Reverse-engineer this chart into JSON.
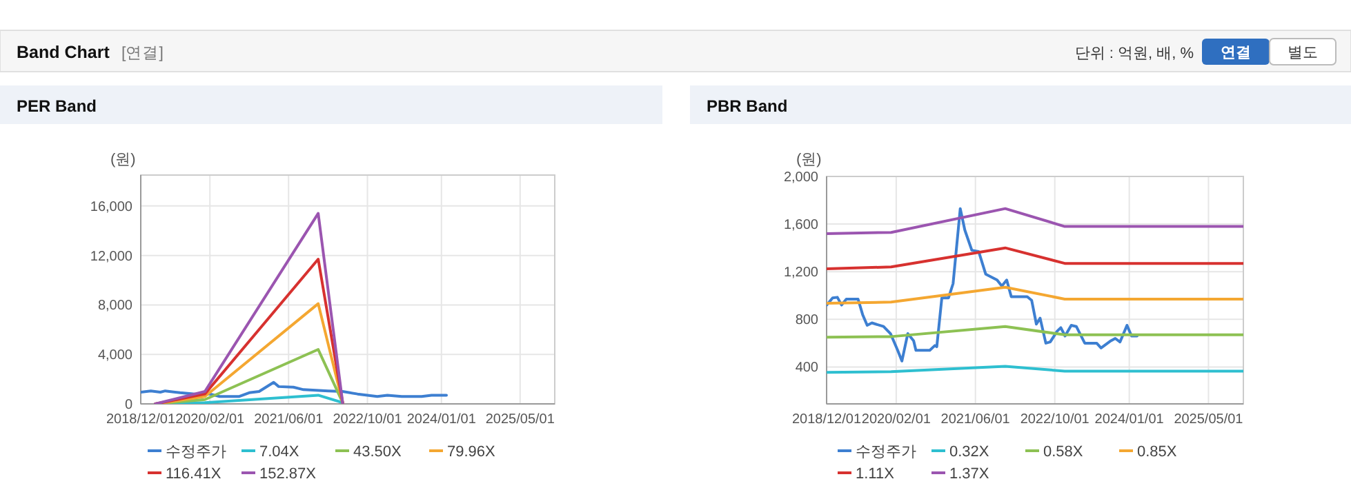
{
  "chart_data": [
    {
      "type": "line",
      "title": "PER Band",
      "ylabel": "(원)",
      "legend": "bottom",
      "grid": true,
      "marker": "none",
      "line_style": "solid",
      "annotations": [
        "Band Chart",
        "[연결]",
        "단위 : 억원, 배, %",
        "연결",
        "별도"
      ],
      "xlim": [
        "2018-12-01",
        "2025-12-01"
      ],
      "xticks": [
        {
          "value": "2018-12-01",
          "label": "2018/12/01"
        },
        {
          "value": "2020-02-01",
          "label": "2020/02/01"
        },
        {
          "value": "2021-06-01",
          "label": "2021/06/01"
        },
        {
          "value": "2022-10-01",
          "label": "2022/10/01"
        },
        {
          "value": "2024-01-01",
          "label": "2024/01/01"
        },
        {
          "value": "2025-05-01",
          "label": "2025/05/01"
        }
      ],
      "ylim": [
        0,
        18500
      ],
      "yticks": [
        0,
        {
          "value": 4000,
          "label": "4,000"
        },
        {
          "value": 8000,
          "label": "8,000"
        },
        {
          "value": 12000,
          "label": "12,000"
        },
        {
          "value": 16000,
          "label": "16,000"
        }
      ],
      "series": [
        {
          "name": "수정주가",
          "color": "#3d7fd1",
          "x": [
            "2018-12-01",
            "2019-02-01",
            "2019-04-01",
            "2019-05-01",
            "2019-08-01",
            "2019-11-01",
            "2020-02-01",
            "2020-04-01",
            "2020-08-01",
            "2020-10-01",
            "2020-12-01",
            "2021-03-01",
            "2021-04-01",
            "2021-07-01",
            "2021-09-01",
            "2022-02-01",
            "2022-05-01",
            "2022-08-01",
            "2022-12-01",
            "2023-02-01",
            "2023-05-01",
            "2023-09-01",
            "2023-11-01",
            "2024-02-01"
          ],
          "values": [
            950,
            1050,
            950,
            1050,
            900,
            800,
            800,
            600,
            600,
            900,
            1000,
            1740,
            1400,
            1350,
            1150,
            1050,
            1000,
            800,
            600,
            700,
            600,
            600,
            700,
            700
          ]
        },
        {
          "name": "7.04X",
          "color": "#2ebfd0",
          "x": [
            "2019-03-01",
            "2020-01-01",
            "2021-12-01",
            "2022-05-01"
          ],
          "values": [
            0,
            100,
            700,
            100
          ]
        },
        {
          "name": "43.50X",
          "color": "#8dc153",
          "x": [
            "2019-03-01",
            "2020-01-01",
            "2021-12-01",
            "2022-05-01"
          ],
          "values": [
            0,
            350,
            4400,
            100
          ]
        },
        {
          "name": "79.96X",
          "color": "#f4a731",
          "x": [
            "2019-03-01",
            "2020-01-01",
            "2021-12-01",
            "2022-05-01"
          ],
          "values": [
            0,
            600,
            8100,
            100
          ]
        },
        {
          "name": "116.41X",
          "color": "#d7312f",
          "x": [
            "2019-03-01",
            "2020-01-01",
            "2021-12-01",
            "2022-05-01"
          ],
          "values": [
            0,
            800,
            11700,
            100
          ]
        },
        {
          "name": "152.87X",
          "color": "#9b55b0",
          "x": [
            "2019-03-01",
            "2020-01-01",
            "2021-12-01",
            "2022-05-01"
          ],
          "values": [
            0,
            1000,
            15400,
            100
          ]
        }
      ]
    },
    {
      "type": "line",
      "title": "PBR Band",
      "ylabel": "(원)",
      "legend": "bottom",
      "grid": true,
      "marker": "none",
      "line_style": "solid",
      "xlim": [
        "2018-12-01",
        "2025-12-01"
      ],
      "xticks": [
        {
          "value": "2018-12-01",
          "label": "2018/12/01"
        },
        {
          "value": "2020-02-01",
          "label": "2020/02/01"
        },
        {
          "value": "2021-06-01",
          "label": "2021/06/01"
        },
        {
          "value": "2022-10-01",
          "label": "2022/10/01"
        },
        {
          "value": "2024-01-01",
          "label": "2024/01/01"
        },
        {
          "value": "2025-05-01",
          "label": "2025/05/01"
        }
      ],
      "ylim": [
        90,
        2000
      ],
      "yticks": [
        400,
        800,
        {
          "value": 1200,
          "label": "1,200"
        },
        {
          "value": 1600,
          "label": "1,600"
        },
        {
          "value": 2000,
          "label": "2,000"
        }
      ],
      "series": [
        {
          "name": "수정주가",
          "color": "#3d7fd1",
          "x": [
            "2018-12-01",
            "2019-01-07",
            "2019-02-05",
            "2019-03-03",
            "2019-04-01",
            "2019-06-12",
            "2019-07-10",
            "2019-08-07",
            "2019-09-05",
            "2019-11-15",
            "2019-12-28",
            "2020-02-10",
            "2020-03-07",
            "2020-04-12",
            "2020-05-18",
            "2020-06-01",
            "2020-08-25",
            "2020-09-25",
            "2020-10-07",
            "2020-11-07",
            "2020-12-18",
            "2021-01-15",
            "2021-02-28",
            "2021-03-28",
            "2021-05-10",
            "2021-06-21",
            "2021-08-03",
            "2021-10-12",
            "2021-11-10",
            "2021-12-10",
            "2022-01-07",
            "2022-04-15",
            "2022-05-12",
            "2022-06-10",
            "2022-07-03",
            "2022-08-07",
            "2022-09-03",
            "2022-10-15",
            "2022-11-07",
            "2022-12-03",
            "2023-01-10",
            "2023-02-10",
            "2023-04-03",
            "2023-06-15",
            "2023-07-12",
            "2023-09-10",
            "2023-10-07",
            "2023-11-05",
            "2023-12-18",
            "2024-01-15",
            "2024-02-18"
          ],
          "values": [
            920,
            980,
            985,
            920,
            970,
            970,
            840,
            750,
            770,
            740,
            680,
            540,
            450,
            680,
            620,
            540,
            540,
            580,
            570,
            980,
            980,
            1100,
            1730,
            1550,
            1380,
            1370,
            1180,
            1130,
            1080,
            1130,
            990,
            990,
            960,
            760,
            810,
            600,
            610,
            700,
            730,
            660,
            750,
            740,
            600,
            600,
            560,
            620,
            640,
            610,
            750,
            660,
            660
          ]
        },
        {
          "name": "0.32X",
          "color": "#2ebfd0",
          "x": [
            "2018-12-01",
            "2020-01-01",
            "2021-12-01",
            "2022-12-01",
            "2025-12-01"
          ],
          "values": [
            355,
            360,
            405,
            365,
            365
          ]
        },
        {
          "name": "0.58X",
          "color": "#8dc153",
          "x": [
            "2018-12-01",
            "2020-01-01",
            "2021-12-01",
            "2022-12-01",
            "2025-12-01"
          ],
          "values": [
            650,
            655,
            740,
            670,
            670
          ]
        },
        {
          "name": "0.85X",
          "color": "#f4a731",
          "x": [
            "2018-12-01",
            "2020-01-01",
            "2021-12-01",
            "2022-12-01",
            "2025-12-01"
          ],
          "values": [
            935,
            945,
            1070,
            970,
            970
          ]
        },
        {
          "name": "1.11X",
          "color": "#d7312f",
          "x": [
            "2018-12-01",
            "2020-01-01",
            "2021-12-01",
            "2022-12-01",
            "2025-12-01"
          ],
          "values": [
            1225,
            1240,
            1400,
            1270,
            1270
          ]
        },
        {
          "name": "1.37X",
          "color": "#9b55b0",
          "x": [
            "2018-12-01",
            "2020-01-01",
            "2021-12-01",
            "2022-12-01",
            "2025-12-01"
          ],
          "values": [
            1520,
            1530,
            1730,
            1580,
            1580
          ]
        }
      ]
    }
  ]
}
